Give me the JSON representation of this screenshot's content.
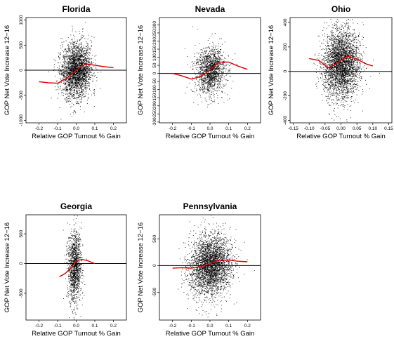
{
  "chart_data": [
    {
      "type": "scatter",
      "title": "Florida",
      "xlabel": "Relative GOP Turnout % Gain",
      "ylabel": "GOP Net Vote Increase 12−16",
      "xlim": [
        -0.27,
        0.27
      ],
      "ylim": [
        -1050,
        1050
      ],
      "x_ticks": [
        "-0.2",
        "-0.1",
        "0.0",
        "0.1",
        "0.2"
      ],
      "x_tick_values": [
        -0.2,
        -0.1,
        0.0,
        0.1,
        0.2
      ],
      "y_ticks": [
        "-1000",
        "-500",
        "0",
        "500",
        "1000"
      ],
      "y_tick_values": [
        -1000,
        -500,
        0,
        500,
        1000
      ],
      "cloud": {
        "n": 2600,
        "x_center": 0.0,
        "x_spread": 0.04,
        "y_center": 0,
        "y_spread": 210
      },
      "fit_line": {
        "color": "#e00000",
        "x": [
          -0.2,
          -0.15,
          -0.1,
          -0.05,
          0.0,
          0.05,
          0.1,
          0.15,
          0.2
        ],
        "y": [
          -230,
          -250,
          -260,
          -160,
          0,
          130,
          100,
          70,
          50
        ]
      },
      "grid": false
    },
    {
      "type": "scatter",
      "title": "Nevada",
      "xlabel": "Relative GOP Turnout % Gain",
      "ylabel": "GOP Net Vote Increase 12−16",
      "xlim": [
        -0.27,
        0.27
      ],
      "ylim": [
        -305,
        345
      ],
      "x_ticks": [
        "-0.2",
        "-0.1",
        "0.0",
        "0.1",
        "0.2"
      ],
      "x_tick_values": [
        -0.2,
        -0.1,
        0.0,
        0.1,
        0.2
      ],
      "y_ticks": [
        "-300",
        "-250",
        "-200",
        "-150",
        "-100",
        "-50",
        "0",
        "50",
        "100",
        "150",
        "200",
        "250",
        "300"
      ],
      "y_tick_values": [
        -300,
        -250,
        -200,
        -150,
        -100,
        -50,
        0,
        50,
        100,
        150,
        200,
        250,
        300
      ],
      "cloud": {
        "n": 1500,
        "x_center": 0.0,
        "x_spread": 0.04,
        "y_center": 20,
        "y_spread": 55
      },
      "fit_line": {
        "color": "#e00000",
        "x": [
          -0.2,
          -0.15,
          -0.1,
          -0.05,
          0.0,
          0.05,
          0.1,
          0.15,
          0.2
        ],
        "y": [
          0,
          -15,
          -35,
          -20,
          20,
          70,
          70,
          45,
          25
        ]
      },
      "grid": false
    },
    {
      "type": "scatter",
      "title": "Ohio",
      "xlabel": "Relative GOP Turnout % Gain",
      "ylabel": "GOP Net Vote Increase 12−16",
      "xlim": [
        -0.16,
        0.16
      ],
      "ylim": [
        -420,
        440
      ],
      "x_ticks": [
        "-0.15",
        "-0.10",
        "-0.05",
        "0.00",
        "0.05",
        "0.10",
        "0.15"
      ],
      "x_tick_values": [
        -0.15,
        -0.1,
        -0.05,
        0.0,
        0.05,
        0.1,
        0.15
      ],
      "y_ticks": [
        "-400",
        "-200",
        "0",
        "200",
        "400"
      ],
      "y_tick_values": [
        -400,
        -200,
        0,
        200,
        400
      ],
      "cloud": {
        "n": 3200,
        "x_center": 0.0,
        "x_spread": 0.028,
        "y_center": 60,
        "y_spread": 110
      },
      "fit_line": {
        "color": "#e00000",
        "x": [
          -0.1,
          -0.07,
          -0.04,
          -0.01,
          0.02,
          0.05,
          0.08,
          0.1
        ],
        "y": [
          105,
          90,
          30,
          70,
          125,
          100,
          60,
          45
        ]
      },
      "grid": false
    },
    {
      "type": "scatter",
      "title": "Georgia",
      "xlabel": "Relative GOP Turnout % Gain",
      "ylabel": "GOP Net Vote Increase 12−16",
      "xlim": [
        -0.27,
        0.27
      ],
      "ylim": [
        -950,
        820
      ],
      "x_ticks": [
        "-0.2",
        "-0.1",
        "0.0",
        "0.1",
        "0.2"
      ],
      "x_tick_values": [
        -0.2,
        -0.1,
        0.0,
        0.1,
        0.2
      ],
      "y_ticks": [
        "-500",
        "0",
        "500"
      ],
      "y_tick_values": [
        -500,
        0,
        500
      ],
      "cloud": {
        "n": 1300,
        "x_center": -0.01,
        "x_spread": 0.018,
        "y_center": -40,
        "y_spread": 230
      },
      "fit_line": {
        "color": "#e00000",
        "x": [
          -0.09,
          -0.06,
          -0.03,
          0.0,
          0.03,
          0.06,
          0.1
        ],
        "y": [
          -220,
          -170,
          -80,
          40,
          70,
          50,
          0
        ]
      },
      "grid": false
    },
    {
      "type": "scatter",
      "title": "Pennsylvania",
      "xlabel": "Relative GOP Turnout % Gain",
      "ylabel": "GOP Net Vote Increase 12−16",
      "xlim": [
        -0.27,
        0.27
      ],
      "ylim": [
        -1020,
        950
      ],
      "x_ticks": [
        "-0.2",
        "-0.1",
        "0.0",
        "0.1",
        "0.2"
      ],
      "x_tick_values": [
        -0.2,
        -0.1,
        0.0,
        0.1,
        0.2
      ],
      "y_ticks": [
        "-500",
        "0",
        "500"
      ],
      "y_tick_values": [
        -500,
        0,
        500
      ],
      "cloud": {
        "n": 3200,
        "x_center": 0.0,
        "x_spread": 0.055,
        "y_center": 0,
        "y_spread": 220
      },
      "fit_line": {
        "color": "#e00000",
        "x": [
          -0.2,
          -0.15,
          -0.1,
          -0.05,
          0.0,
          0.05,
          0.1,
          0.15,
          0.2
        ],
        "y": [
          -50,
          -40,
          -50,
          -20,
          30,
          100,
          100,
          80,
          70
        ]
      },
      "grid": false
    }
  ]
}
